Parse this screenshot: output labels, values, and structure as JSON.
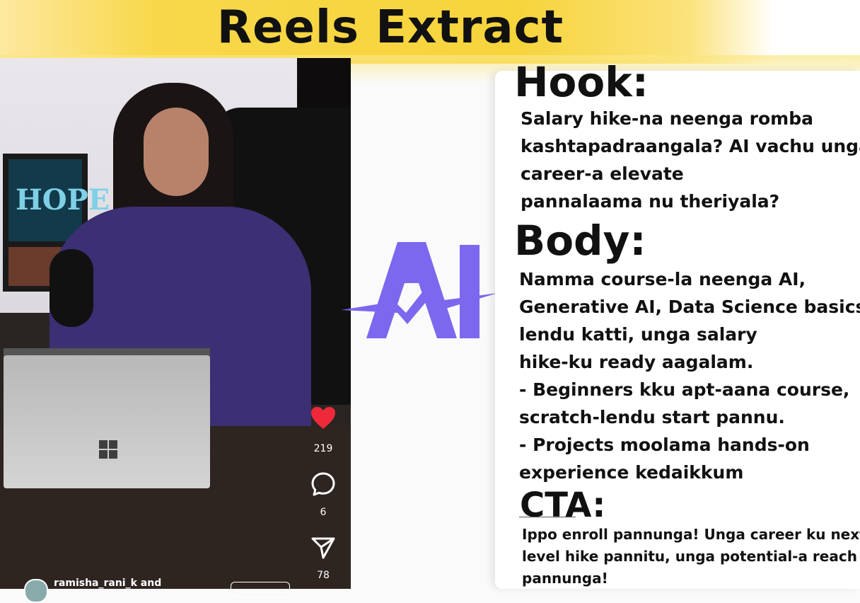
{
  "banner": {
    "title": "Reels Extract"
  },
  "reel": {
    "poster_text": "HOPE",
    "likes": "219",
    "comments": "6",
    "shares": "78",
    "username_text": "ramisha_rani_k and",
    "icons": {
      "like": "heart-icon",
      "comment": "comment-icon",
      "share": "send-icon"
    },
    "colors": {
      "like": "#ee2a3a"
    }
  },
  "logo": {
    "text": "AI",
    "color": "#7b68ee"
  },
  "script": {
    "hook": {
      "heading": "Hook:",
      "lines": [
        "Salary hike-na neenga romba",
        "kashtapadraangala? AI vachu unga",
        "career-a elevate",
        "pannalaama nu theriyala?"
      ]
    },
    "body": {
      "heading": "Body:",
      "lines": [
        "Namma course-la neenga AI,",
        "Generative AI, Data Science basics-",
        "lendu katti, unga salary",
        "hike-ku ready aagalam.",
        "- Beginners kku apt-aana course,",
        "scratch-lendu start pannu.",
        "- Projects moolama hands-on",
        "experience kedaikkum"
      ]
    },
    "cta": {
      "heading": "CTA:",
      "lines": [
        "Ippo enroll pannunga! Unga career ku next",
        "level hike pannitu, unga potential-a reach",
        "pannunga!"
      ]
    }
  }
}
